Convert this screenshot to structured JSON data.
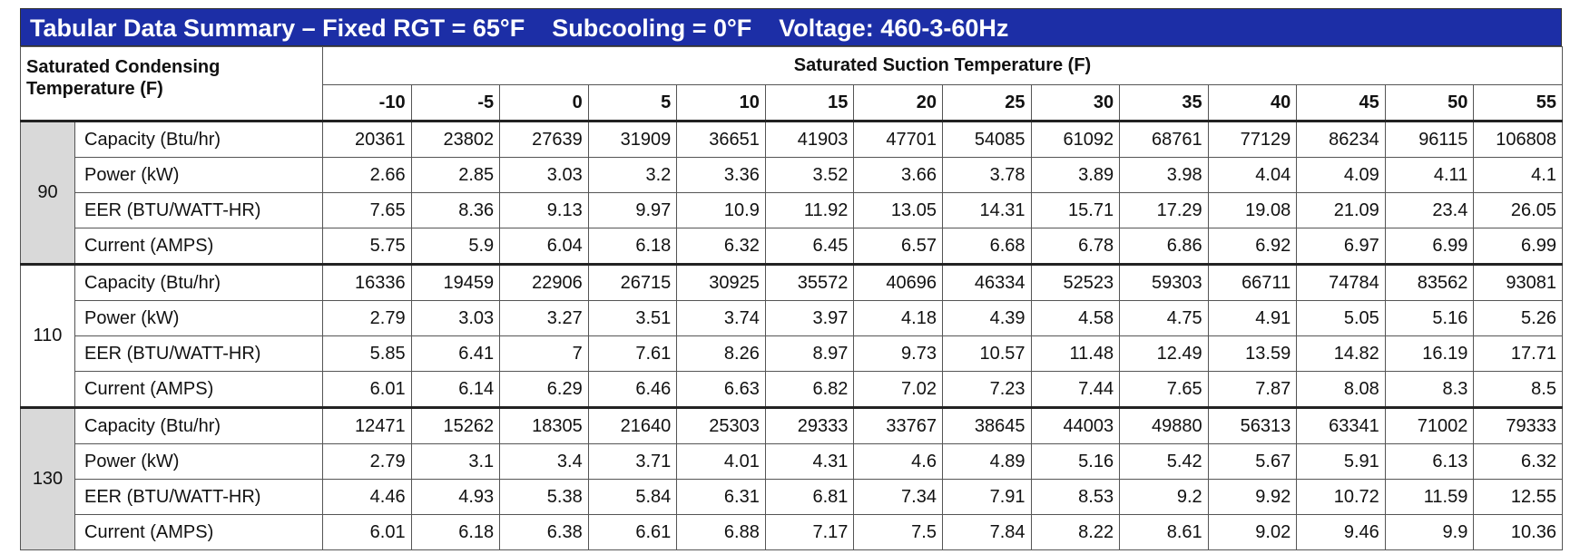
{
  "title": "Tabular Data Summary – Fixed RGT = 65°F    Subcooling = 0°F    Voltage: 460-3-60Hz",
  "header": {
    "corner": "Saturated Condensing Temperature (F)",
    "suction_label": "Saturated Suction Temperature (F)",
    "suction_temps": [
      -10,
      -5,
      0,
      5,
      10,
      15,
      20,
      25,
      30,
      35,
      40,
      45,
      50,
      55
    ]
  },
  "groups": [
    {
      "condensing": 90,
      "rows": [
        {
          "label": "Capacity (Btu/hr)",
          "values": [
            20361,
            23802,
            27639,
            31909,
            36651,
            41903,
            47701,
            54085,
            61092,
            68761,
            77129,
            86234,
            96115,
            106808
          ]
        },
        {
          "label": "Power (kW)",
          "values": [
            2.66,
            2.85,
            3.03,
            3.2,
            3.36,
            3.52,
            3.66,
            3.78,
            3.89,
            3.98,
            4.04,
            4.09,
            4.11,
            4.1
          ]
        },
        {
          "label": "EER (BTU/WATT-HR)",
          "values": [
            7.65,
            8.36,
            9.13,
            9.97,
            10.9,
            11.92,
            13.05,
            14.31,
            15.71,
            17.29,
            19.08,
            21.09,
            23.4,
            26.05
          ]
        },
        {
          "label": "Current (AMPS)",
          "values": [
            5.75,
            5.9,
            6.04,
            6.18,
            6.32,
            6.45,
            6.57,
            6.68,
            6.78,
            6.86,
            6.92,
            6.97,
            6.99,
            6.99
          ]
        }
      ]
    },
    {
      "condensing": 110,
      "rows": [
        {
          "label": "Capacity (Btu/hr)",
          "values": [
            16336,
            19459,
            22906,
            26715,
            30925,
            35572,
            40696,
            46334,
            52523,
            59303,
            66711,
            74784,
            83562,
            93081
          ]
        },
        {
          "label": "Power (kW)",
          "values": [
            2.79,
            3.03,
            3.27,
            3.51,
            3.74,
            3.97,
            4.18,
            4.39,
            4.58,
            4.75,
            4.91,
            5.05,
            5.16,
            5.26
          ]
        },
        {
          "label": "EER (BTU/WATT-HR)",
          "values": [
            5.85,
            6.41,
            7,
            7.61,
            8.26,
            8.97,
            9.73,
            10.57,
            11.48,
            12.49,
            13.59,
            14.82,
            16.19,
            17.71
          ]
        },
        {
          "label": "Current (AMPS)",
          "values": [
            6.01,
            6.14,
            6.29,
            6.46,
            6.63,
            6.82,
            7.02,
            7.23,
            7.44,
            7.65,
            7.87,
            8.08,
            8.3,
            8.5
          ]
        }
      ]
    },
    {
      "condensing": 130,
      "rows": [
        {
          "label": "Capacity (Btu/hr)",
          "values": [
            12471,
            15262,
            18305,
            21640,
            25303,
            29333,
            33767,
            38645,
            44003,
            49880,
            56313,
            63341,
            71002,
            79333
          ]
        },
        {
          "label": "Power (kW)",
          "values": [
            2.79,
            3.1,
            3.4,
            3.71,
            4.01,
            4.31,
            4.6,
            4.89,
            5.16,
            5.42,
            5.67,
            5.91,
            6.13,
            6.32
          ]
        },
        {
          "label": "EER (BTU/WATT-HR)",
          "values": [
            4.46,
            4.93,
            5.38,
            5.84,
            6.31,
            6.81,
            7.34,
            7.91,
            8.53,
            9.2,
            9.92,
            10.72,
            11.59,
            12.55
          ]
        },
        {
          "label": "Current (AMPS)",
          "values": [
            6.01,
            6.18,
            6.38,
            6.61,
            6.88,
            7.17,
            7.5,
            7.84,
            8.22,
            8.61,
            9.02,
            9.46,
            9.9,
            10.36
          ]
        }
      ]
    }
  ]
}
